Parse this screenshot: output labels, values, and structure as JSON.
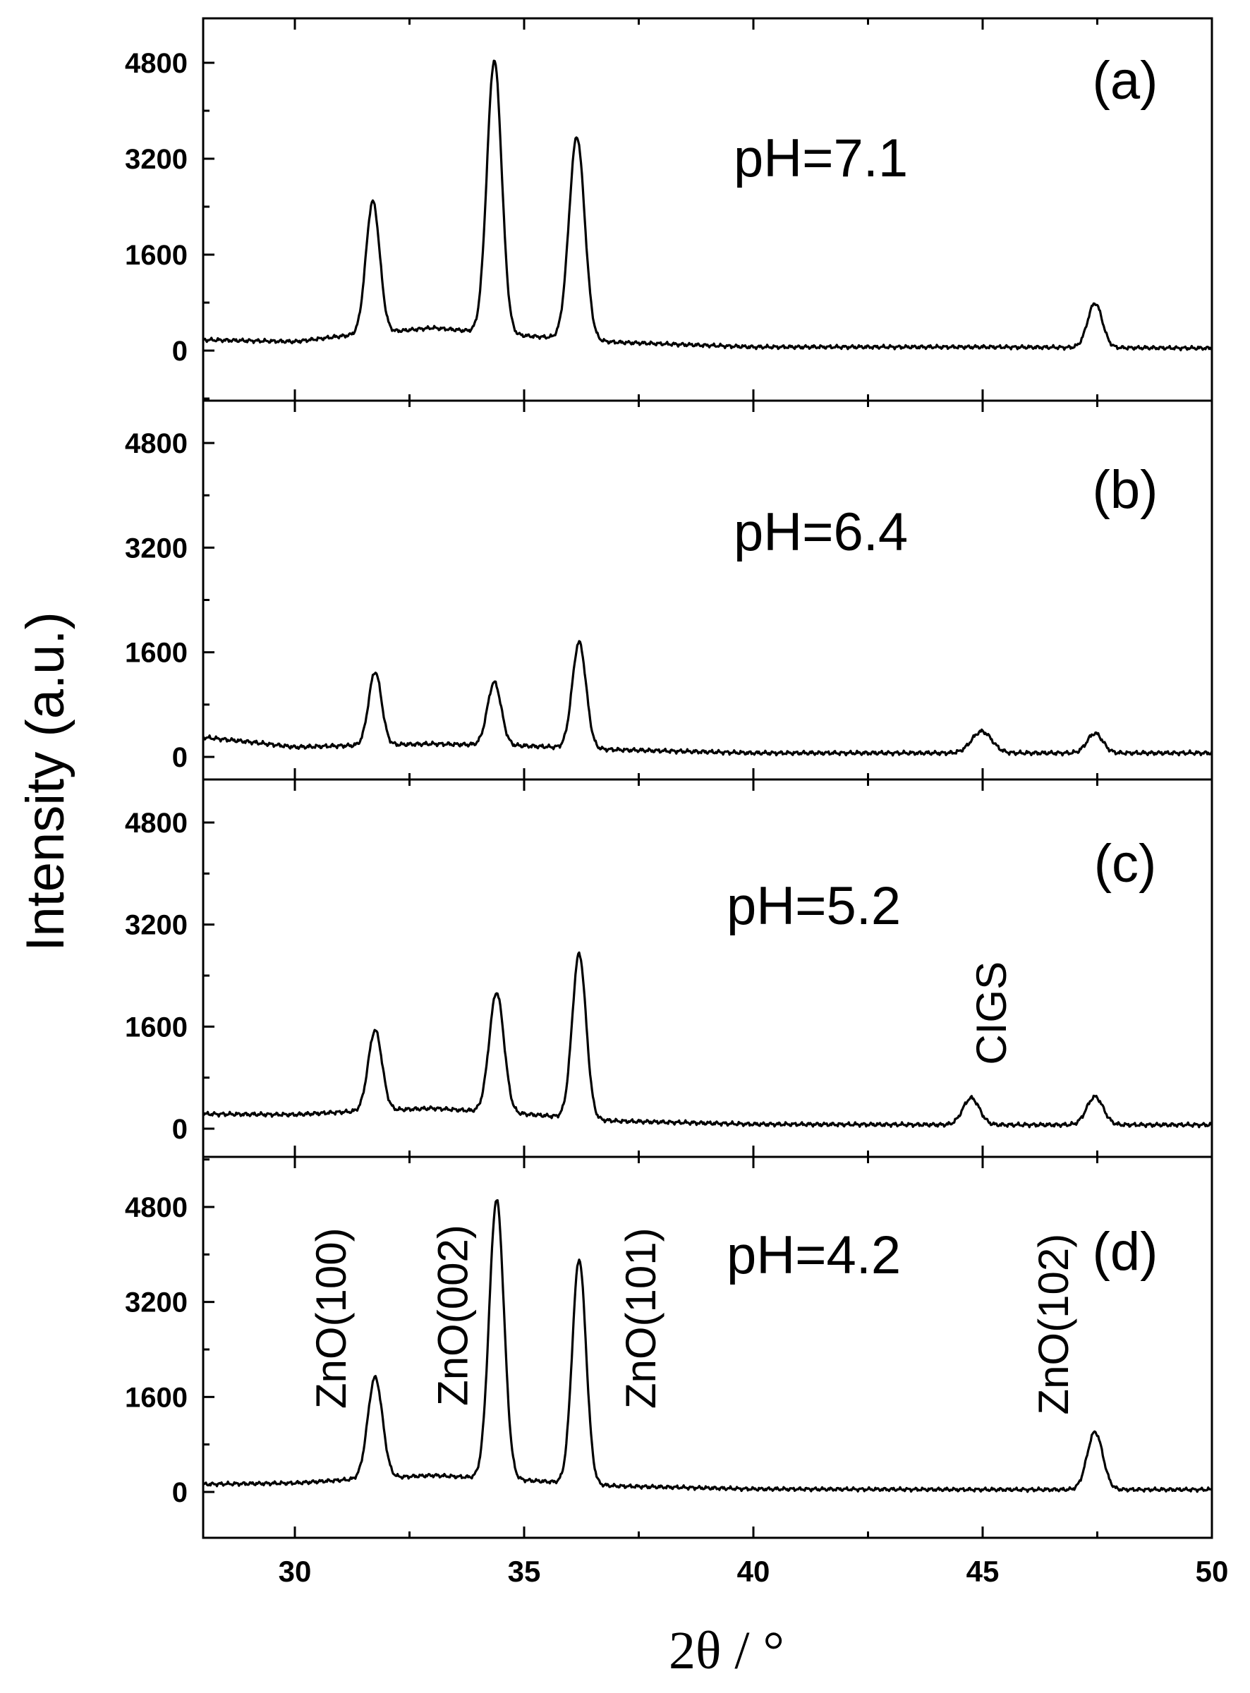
{
  "chart_data": {
    "type": "line",
    "xlabel": "2θ / °",
    "ylabel": "Intensity (a.u.)",
    "xlim": [
      28,
      50
    ],
    "x_ticks": [
      30,
      35,
      40,
      45,
      50
    ],
    "ylim": [
      -600,
      5600
    ],
    "y_ticks": [
      0,
      1600,
      3200,
      4800
    ],
    "panels": [
      {
        "label": "(a)",
        "condition": "pH=7.1",
        "baseline": [
          [
            28,
            180
          ],
          [
            30,
            150
          ],
          [
            31,
            240
          ],
          [
            33,
            380
          ],
          [
            35,
            250
          ],
          [
            37,
            140
          ],
          [
            40,
            60
          ],
          [
            45,
            60
          ],
          [
            50,
            40
          ]
        ],
        "peaks": [
          [
            31.7,
            2200,
            0.15
          ],
          [
            34.35,
            4550,
            0.16
          ],
          [
            36.15,
            3380,
            0.17
          ],
          [
            47.45,
            740,
            0.16
          ]
        ],
        "annotations": []
      },
      {
        "label": "(b)",
        "condition": "pH=6.4",
        "baseline": [
          [
            28,
            300
          ],
          [
            29,
            230
          ],
          [
            30,
            150
          ],
          [
            31,
            170
          ],
          [
            33,
            200
          ],
          [
            35,
            170
          ],
          [
            37,
            110
          ],
          [
            40,
            60
          ],
          [
            45,
            60
          ],
          [
            50,
            60
          ]
        ],
        "peaks": [
          [
            31.75,
            1120,
            0.14
          ],
          [
            34.35,
            960,
            0.15
          ],
          [
            36.2,
            1620,
            0.15
          ],
          [
            44.98,
            330,
            0.22
          ],
          [
            47.45,
            300,
            0.17
          ]
        ],
        "annotations": []
      },
      {
        "label": "(c)",
        "condition": "pH=5.2",
        "baseline": [
          [
            28,
            230
          ],
          [
            30,
            220
          ],
          [
            31,
            260
          ],
          [
            33,
            320
          ],
          [
            35,
            230
          ],
          [
            37,
            120
          ],
          [
            40,
            70
          ],
          [
            45,
            60
          ],
          [
            50,
            60
          ]
        ],
        "peaks": [
          [
            31.75,
            1260,
            0.15
          ],
          [
            34.4,
            1880,
            0.16
          ],
          [
            36.2,
            2580,
            0.15
          ],
          [
            44.75,
            420,
            0.18
          ],
          [
            47.45,
            440,
            0.18
          ]
        ],
        "annotations": [
          {
            "text": "CIGS",
            "x": 45.2,
            "y": 1000
          }
        ]
      },
      {
        "label": "(d)",
        "condition": "pH=4.2",
        "baseline": [
          [
            28,
            130
          ],
          [
            30,
            150
          ],
          [
            31,
            200
          ],
          [
            33,
            280
          ],
          [
            35,
            200
          ],
          [
            37,
            100
          ],
          [
            40,
            50
          ],
          [
            45,
            40
          ],
          [
            50,
            40
          ]
        ],
        "peaks": [
          [
            31.75,
            1700,
            0.16
          ],
          [
            34.4,
            4700,
            0.16
          ],
          [
            36.2,
            3780,
            0.15
          ],
          [
            47.45,
            970,
            0.17
          ]
        ],
        "annotations": [
          {
            "text": "ZnO(100)",
            "x": 30.8,
            "y": 1400
          },
          {
            "text": "ZnO(002)",
            "x": 33.45,
            "y": 1450
          },
          {
            "text": "ZnO(101)",
            "x": 37.55,
            "y": 1400
          },
          {
            "text": "ZnO(102)",
            "x": 46.55,
            "y": 1300
          }
        ]
      }
    ]
  }
}
